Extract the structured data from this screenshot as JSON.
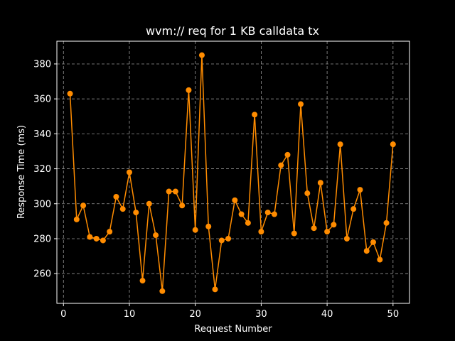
{
  "chart_data": {
    "type": "line",
    "title": "wvm:// req for 1 KB calldata tx",
    "xlabel": "Request Number",
    "ylabel": "Response Time (ms)",
    "xlim": [
      -1,
      52.5
    ],
    "ylim": [
      243,
      393
    ],
    "xticks": [
      0,
      10,
      20,
      30,
      40,
      50
    ],
    "yticks": [
      260,
      280,
      300,
      320,
      340,
      360,
      380
    ],
    "grid": true,
    "colors": {
      "background": "#000000",
      "axes": "#ffffff",
      "series": "#ff8c00"
    },
    "x": [
      1,
      2,
      3,
      4,
      5,
      6,
      7,
      8,
      9,
      10,
      11,
      12,
      13,
      14,
      15,
      16,
      17,
      18,
      19,
      20,
      21,
      22,
      23,
      24,
      25,
      26,
      27,
      28,
      29,
      30,
      31,
      32,
      33,
      34,
      35,
      36,
      37,
      38,
      39,
      40,
      41,
      42,
      43,
      44,
      45,
      46,
      47,
      48,
      49,
      50
    ],
    "series": [
      {
        "values": [
          363,
          291,
          299,
          281,
          280,
          279,
          284,
          304,
          297,
          318,
          295,
          256,
          300,
          282,
          250,
          307,
          307,
          299,
          365,
          285,
          385,
          287,
          251,
          279,
          280,
          302,
          294,
          289,
          351,
          284,
          295,
          294,
          322,
          328,
          283,
          357,
          306,
          286,
          312,
          284,
          288,
          334,
          280,
          297,
          308,
          273,
          278,
          268,
          289,
          334
        ],
        "marker": "circle"
      }
    ]
  }
}
